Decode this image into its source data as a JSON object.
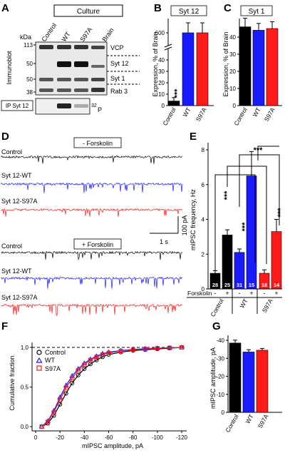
{
  "panel_letters": [
    "A",
    "B",
    "C",
    "D",
    "E",
    "F",
    "G"
  ],
  "panel_a": {
    "culture_header": "Culture",
    "lane_labels": [
      "Control",
      "WT",
      "S97A",
      "Brain"
    ],
    "kda_label": "kDa",
    "mw_markers": [
      "113",
      "50",
      "50",
      "38"
    ],
    "side_label": "Immunoblot",
    "band_labels": [
      "VCP",
      "Syt 12",
      "Syt 1",
      "Rab 3"
    ],
    "ip_label": "IP Syt 12",
    "p32_label": "32",
    "p32_label_suffix": "P"
  },
  "panel_d": {
    "condition_minus": "- Forskolin",
    "condition_plus": "+ Forskolin",
    "trace_labels_top": [
      "Control",
      "Syt 12-WT",
      "Syt 12-S97A"
    ],
    "trace_labels_bottom": [
      "Control",
      "Syt 12-WT",
      "Syt 12-S97A"
    ],
    "scale_y": "100 pA",
    "scale_x": "1 s"
  },
  "chart_data": [
    {
      "panel": "B",
      "type": "bar",
      "title": "Syt 12",
      "ylabel": "Expression, % of Brain",
      "categories": [
        "Control",
        "WT",
        "S97A"
      ],
      "values": [
        4,
        600,
        600
      ],
      "errors": [
        3,
        70,
        70
      ],
      "colors": [
        "#000000",
        "#1a1aff",
        "#ff1a1a"
      ],
      "ylim": [
        0,
        700
      ],
      "axis_break": [
        50,
        520
      ],
      "yticks_low": [
        "0",
        "10",
        "20",
        "30",
        "40"
      ],
      "yticks_high": [
        "600"
      ],
      "annotations": [
        "***"
      ]
    },
    {
      "panel": "C",
      "type": "bar",
      "title": "Syt 1",
      "ylabel": "Expression, % of Brain",
      "categories": [
        "Control",
        "WT",
        "S97A"
      ],
      "values": [
        46,
        44,
        45
      ],
      "errors": [
        5,
        4,
        4
      ],
      "colors": [
        "#000000",
        "#1a1aff",
        "#ff1a1a"
      ],
      "ylim": [
        0,
        50
      ],
      "yticks": [
        "0",
        "10",
        "20",
        "30",
        "40"
      ]
    },
    {
      "panel": "E",
      "type": "bar",
      "ylabel": "mIPSC frequency, Hz",
      "categories": [
        "Control -",
        "Control +",
        "WT -",
        "WT +",
        "S97A -",
        "S97A +"
      ],
      "groups": [
        "Control",
        "WT",
        "S97A"
      ],
      "forskolin_label": "Forskolin",
      "forskolin_signs": [
        "-",
        "+",
        "-",
        "+",
        "-",
        "+"
      ],
      "values": [
        0.9,
        3.1,
        2.1,
        6.5,
        0.9,
        3.3
      ],
      "errors": [
        0.15,
        0.3,
        0.2,
        1.4,
        0.2,
        0.7
      ],
      "n_labels": [
        "28",
        "25",
        "31",
        "15",
        "18",
        "14"
      ],
      "colors": [
        "#000000",
        "#000000",
        "#1a1aff",
        "#1a1aff",
        "#ff1a1a",
        "#ff1a1a"
      ],
      "ylim": [
        0,
        8.6
      ],
      "yticks": [
        "0",
        "2",
        "4",
        "6",
        "8"
      ],
      "annotations": [
        "***",
        "***",
        "***",
        "***"
      ]
    },
    {
      "panel": "F",
      "type": "line",
      "ylabel": "Cumulative fraction",
      "xlabel": "mIPSC amplitude, pA",
      "xlim": [
        0,
        -120
      ],
      "ylim": [
        0,
        1.0
      ],
      "xticks": [
        "0",
        "-20",
        "-40",
        "-60",
        "-80",
        "-100",
        "-120"
      ],
      "yticks": [
        "0.0",
        "0.5",
        "1.0"
      ],
      "legend_position": "top-right",
      "series": [
        {
          "name": "Control",
          "color": "#000000",
          "marker": "circle",
          "x": [
            -5,
            -10,
            -15,
            -20,
            -25,
            -30,
            -35,
            -40,
            -45,
            -50,
            -55,
            -60,
            -70,
            -80,
            -90,
            -100,
            -110,
            -120
          ],
          "y": [
            0.0,
            0.04,
            0.14,
            0.28,
            0.42,
            0.55,
            0.65,
            0.73,
            0.79,
            0.84,
            0.88,
            0.91,
            0.94,
            0.96,
            0.97,
            0.98,
            0.99,
            1.0
          ]
        },
        {
          "name": "WT",
          "color": "#1a1aff",
          "marker": "triangle",
          "x": [
            -5,
            -10,
            -15,
            -20,
            -25,
            -30,
            -35,
            -40,
            -45,
            -50,
            -55,
            -60,
            -70,
            -80,
            -90,
            -100,
            -110,
            -120
          ],
          "y": [
            0.0,
            0.07,
            0.2,
            0.37,
            0.52,
            0.64,
            0.73,
            0.8,
            0.85,
            0.89,
            0.92,
            0.94,
            0.96,
            0.975,
            0.985,
            0.99,
            0.995,
            1.0
          ]
        },
        {
          "name": "S97A",
          "color": "#ff1a1a",
          "marker": "square",
          "x": [
            -5,
            -10,
            -15,
            -20,
            -25,
            -30,
            -35,
            -40,
            -45,
            -50,
            -55,
            -60,
            -70,
            -80,
            -90,
            -100,
            -110,
            -120
          ],
          "y": [
            0.0,
            0.06,
            0.18,
            0.34,
            0.49,
            0.61,
            0.71,
            0.78,
            0.84,
            0.88,
            0.91,
            0.93,
            0.955,
            0.97,
            0.98,
            0.99,
            0.995,
            1.0
          ]
        }
      ]
    },
    {
      "panel": "G",
      "type": "bar",
      "ylabel": "mIPSC amplitude, pA",
      "categories": [
        "Control",
        "WT",
        "S97A"
      ],
      "values": [
        -38.5,
        -33.5,
        -34.5
      ],
      "errors": [
        1.6,
        1.3,
        1.0
      ],
      "colors": [
        "#000000",
        "#1a1aff",
        "#ff1a1a"
      ],
      "ylim": [
        0,
        -42
      ],
      "yticks": [
        "0",
        "-10",
        "-20",
        "-30",
        "-40"
      ]
    }
  ]
}
